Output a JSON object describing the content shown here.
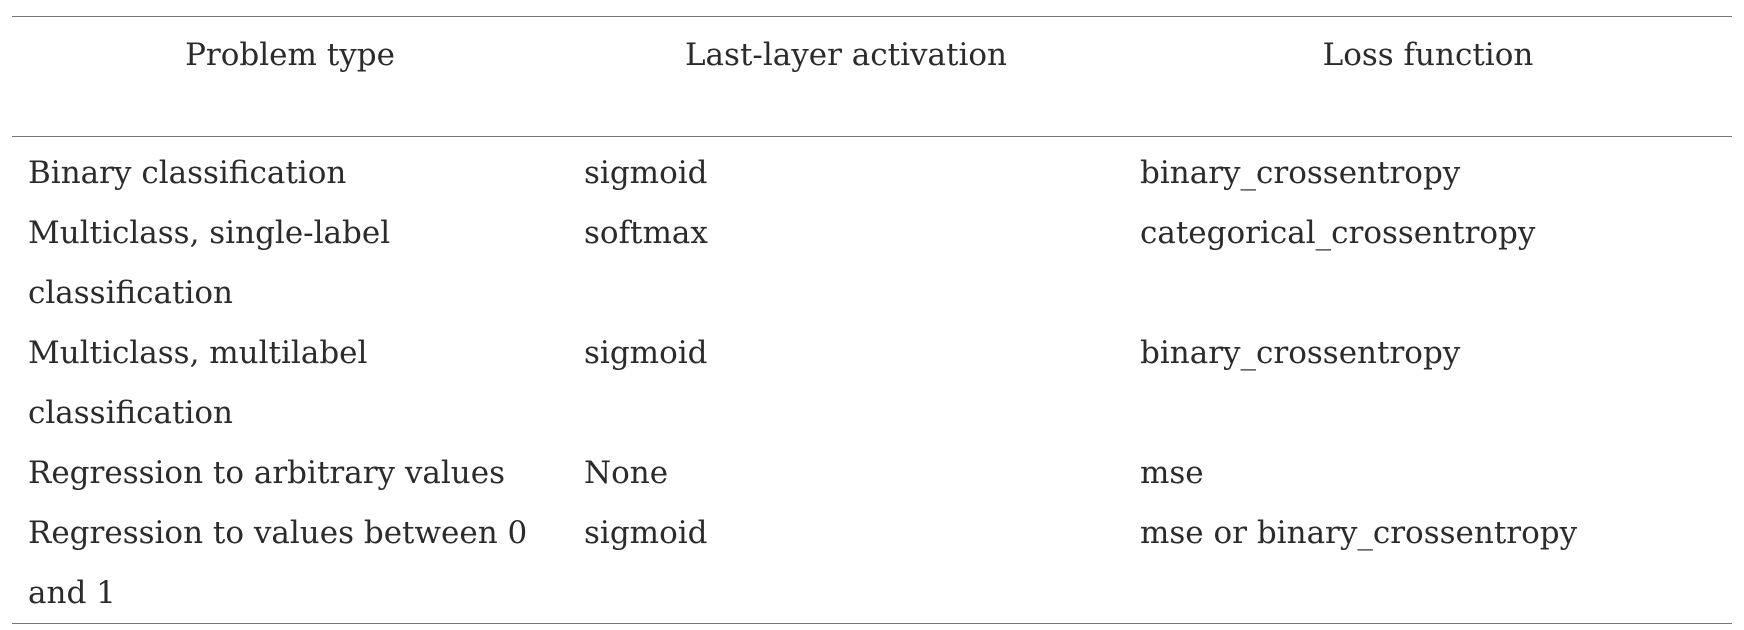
{
  "table": {
    "headers": [
      "Problem type",
      "Last-layer activation",
      "Loss function"
    ],
    "rows": [
      [
        "Binary classification",
        "sigmoid",
        "binary_crossentropy"
      ],
      [
        "Multiclass, single-label classification",
        "softmax",
        "categorical_crossentropy"
      ],
      [
        "Multiclass, multilabel classification",
        "sigmoid",
        "binary_crossentropy"
      ],
      [
        "Regression to arbitrary values",
        "None",
        "mse"
      ],
      [
        "Regression to values between 0 and 1",
        "sigmoid",
        "mse or binary_crossentropy"
      ]
    ]
  }
}
